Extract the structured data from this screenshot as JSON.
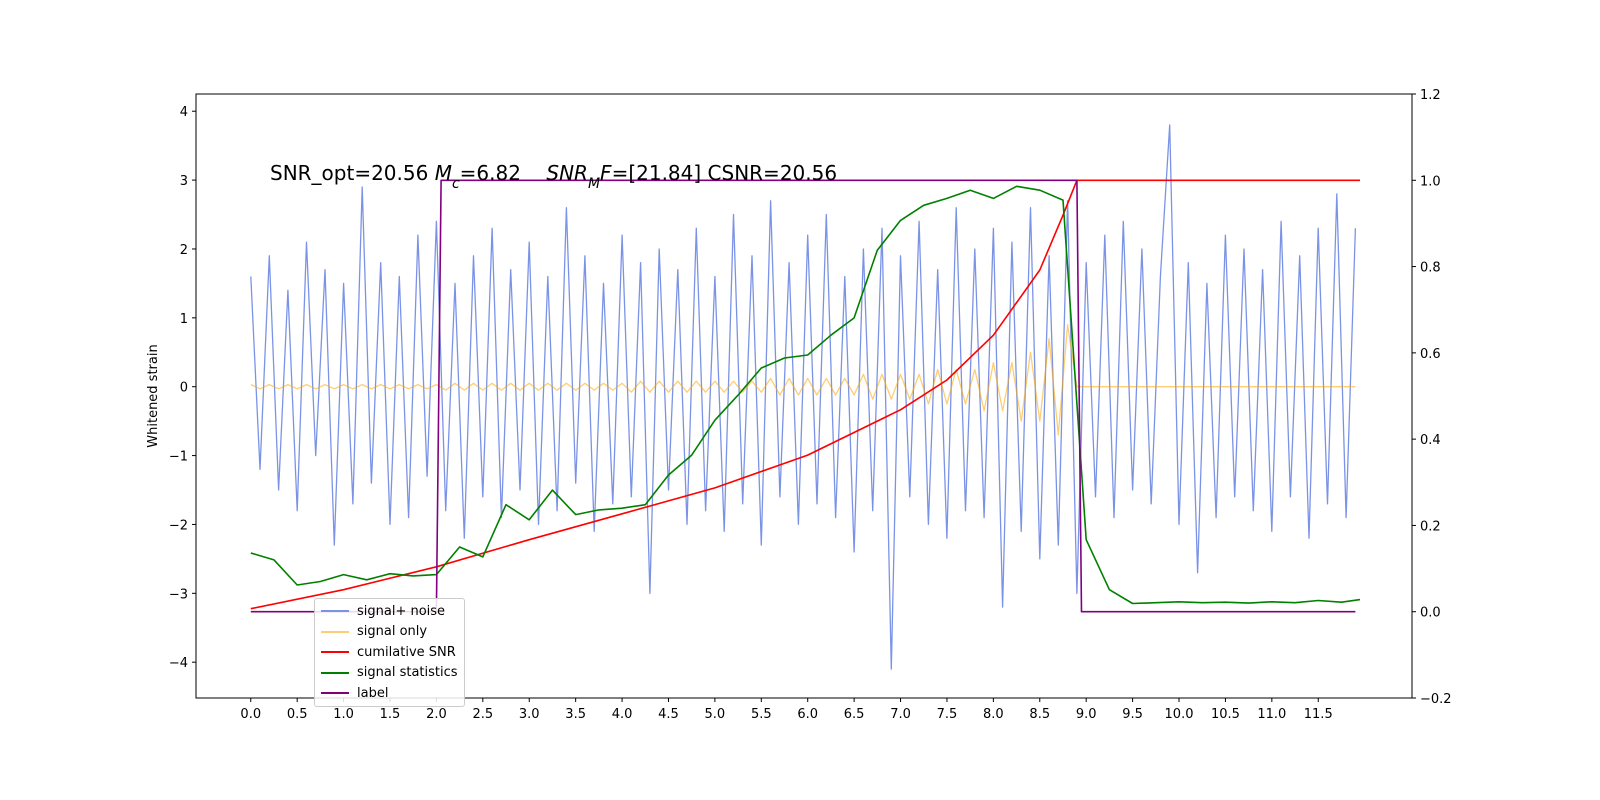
{
  "chart_data": {
    "type": "line",
    "ylabel": "Whitened strain",
    "annotation_parts": [
      "SNR_opt=20.56 ",
      "M",
      "c",
      "=6.82    ",
      "SNR",
      "M",
      "F",
      "=[21.84] CSNR=20.56"
    ],
    "xlim": [
      -0.59,
      12.51
    ],
    "ylim": [
      -4.52,
      4.25
    ],
    "y2lim": [
      -0.2,
      1.2
    ],
    "xticks": [
      {
        "value": 0,
        "label": "0.0"
      },
      0.5,
      {
        "value": 1,
        "label": "1.0"
      },
      1.5,
      {
        "value": 2,
        "label": "2.0"
      },
      2.5,
      {
        "value": 3,
        "label": "3.0"
      },
      3.5,
      {
        "value": 4,
        "label": "4.0"
      },
      4.5,
      {
        "value": 5,
        "label": "5.0"
      },
      5.5,
      {
        "value": 6,
        "label": "6.0"
      },
      6.5,
      {
        "value": 7,
        "label": "7.0"
      },
      7.5,
      {
        "value": 8,
        "label": "8.0"
      },
      8.5,
      {
        "value": 9,
        "label": "9.0"
      },
      9.5,
      {
        "value": 10,
        "label": "10.0"
      },
      10.5,
      {
        "value": 11,
        "label": "11.0"
      },
      11.5
    ],
    "yticks": [
      {
        "value": -4,
        "label": "−4"
      },
      {
        "value": -3,
        "label": "−3"
      },
      {
        "value": -2,
        "label": "−2"
      },
      {
        "value": -1,
        "label": "−1"
      },
      0,
      1,
      2,
      3,
      4
    ],
    "y2ticks": [
      {
        "value": -0.2,
        "label": "−0.2"
      },
      {
        "value": 0,
        "label": "0.0"
      },
      0.2,
      0.4,
      0.6,
      0.8,
      {
        "value": 1,
        "label": "1.0"
      },
      1.2
    ],
    "legend": "lower left",
    "x": [
      0,
      0.1,
      0.2,
      0.3,
      0.4,
      0.5,
      0.6,
      0.7,
      0.8,
      0.9,
      1,
      1.1,
      1.2,
      1.3,
      1.4,
      1.5,
      1.6,
      1.7,
      1.8,
      1.9,
      2,
      2.1,
      2.2,
      2.3,
      2.4,
      2.5,
      2.6,
      2.7,
      2.8,
      2.9,
      3,
      3.1,
      3.2,
      3.3,
      3.4,
      3.5,
      3.6,
      3.7,
      3.8,
      3.9,
      4,
      4.1,
      4.2,
      4.3,
      4.4,
      4.5,
      4.6,
      4.7,
      4.8,
      4.9,
      5,
      5.1,
      5.2,
      5.3,
      5.4,
      5.5,
      5.6,
      5.7,
      5.8,
      5.9,
      6,
      6.1,
      6.2,
      6.3,
      6.4,
      6.5,
      6.6,
      6.7,
      6.8,
      6.9,
      7,
      7.1,
      7.2,
      7.3,
      7.4,
      7.5,
      7.6,
      7.7,
      7.8,
      7.9,
      8,
      8.1,
      8.2,
      8.3,
      8.4,
      8.5,
      8.6,
      8.7,
      8.8,
      8.9,
      9,
      9.1,
      9.2,
      9.3,
      9.4,
      9.5,
      9.6,
      9.7,
      9.8,
      9.9,
      10,
      10.1,
      10.2,
      10.3,
      10.4,
      10.5,
      10.6,
      10.7,
      10.8,
      10.9,
      11,
      11.1,
      11.2,
      11.3,
      11.4,
      11.5,
      11.6,
      11.7,
      11.8,
      11.9
    ],
    "series": [
      {
        "name": "signal+ noise",
        "color": "#7b93e6",
        "values": [
          1.6,
          -1.2,
          1.9,
          -1.5,
          1.4,
          -1.8,
          2.1,
          -1.0,
          1.7,
          -2.3,
          1.5,
          -1.7,
          2.9,
          -1.4,
          1.8,
          -2.0,
          1.6,
          -1.9,
          2.2,
          -1.3,
          2.4,
          -1.8,
          1.5,
          -2.2,
          1.9,
          -1.6,
          2.3,
          -1.9,
          1.7,
          -1.5,
          2.1,
          -2.0,
          1.6,
          -1.8,
          2.6,
          -1.4,
          1.9,
          -2.1,
          1.5,
          -1.7,
          2.2,
          -1.6,
          1.8,
          -3.0,
          2.0,
          -1.5,
          1.7,
          -2.0,
          2.3,
          -1.8,
          1.6,
          -2.1,
          2.5,
          -1.7,
          1.9,
          -2.3,
          2.7,
          -1.6,
          1.8,
          -2.0,
          2.2,
          -1.7,
          2.5,
          -1.9,
          1.6,
          -2.4,
          2.0,
          -1.8,
          2.3,
          -4.1,
          1.9,
          -1.6,
          2.4,
          -2.0,
          1.7,
          -2.2,
          2.6,
          -1.8,
          2.0,
          -1.9,
          2.3,
          -3.2,
          2.1,
          -2.1,
          2.6,
          -2.5,
          1.9,
          -2.3,
          2.7,
          -3.0,
          1.8,
          -1.6,
          2.2,
          -1.9,
          2.4,
          -1.5,
          2.0,
          -1.7,
          1.6,
          3.8,
          -2.0,
          1.8,
          -2.7,
          1.5,
          -1.9,
          2.2,
          -1.6,
          2.0,
          -1.8,
          1.7,
          -2.1,
          2.4,
          -1.6,
          1.9,
          -2.2,
          2.3,
          -1.7,
          2.8,
          -1.9,
          2.3
        ]
      },
      {
        "name": "signal only",
        "color": "#ffa500",
        "values": [
          0.03,
          -0.03,
          0.03,
          -0.03,
          0.03,
          -0.03,
          0.03,
          -0.03,
          0.03,
          -0.03,
          0.03,
          -0.03,
          0.03,
          -0.03,
          0.03,
          -0.03,
          0.03,
          -0.03,
          0.03,
          -0.03,
          0.03,
          -0.05,
          0.05,
          -0.05,
          0.05,
          -0.05,
          0.05,
          -0.05,
          0.05,
          -0.05,
          0.05,
          -0.05,
          0.05,
          -0.05,
          0.05,
          -0.05,
          0.05,
          -0.05,
          0.05,
          -0.05,
          0.05,
          -0.08,
          0.08,
          -0.08,
          0.08,
          -0.08,
          0.08,
          -0.08,
          0.08,
          -0.08,
          0.08,
          -0.08,
          0.08,
          -0.08,
          0.08,
          -0.08,
          0.12,
          -0.12,
          0.12,
          -0.12,
          0.12,
          -0.12,
          0.12,
          -0.12,
          0.12,
          -0.12,
          0.18,
          -0.18,
          0.18,
          -0.18,
          0.18,
          -0.18,
          0.18,
          -0.25,
          0.25,
          -0.25,
          0.25,
          -0.25,
          0.25,
          -0.35,
          0.35,
          -0.35,
          0.35,
          -0.5,
          0.5,
          -0.5,
          0.7,
          -0.7,
          0.9,
          0,
          0,
          0,
          0,
          0,
          0,
          0,
          0,
          0,
          0,
          0,
          0,
          0,
          0,
          0,
          0,
          0,
          0,
          0,
          0,
          0,
          0,
          0,
          0,
          0,
          0,
          0,
          0,
          0,
          0,
          0
        ]
      },
      {
        "name": "cumilative SNR",
        "color": "#ff0000",
        "axis": "y2",
        "x": [
          0,
          1,
          2,
          3,
          4,
          5,
          6,
          7,
          7.5,
          8,
          8.5,
          8.75,
          8.9,
          11.95
        ],
        "values": [
          0.007,
          0.051,
          0.104,
          0.167,
          0.227,
          0.287,
          0.363,
          0.468,
          0.537,
          0.641,
          0.792,
          0.919,
          1.0,
          1.0
        ]
      },
      {
        "name": "signal statistics",
        "color": "#008000",
        "axis": "y2",
        "x": [
          0,
          0.25,
          0.5,
          0.75,
          1,
          1.25,
          1.5,
          1.75,
          2,
          2.25,
          2.5,
          2.75,
          3,
          3.25,
          3.5,
          3.75,
          4,
          4.25,
          4.5,
          4.75,
          5,
          5.25,
          5.5,
          5.75,
          6,
          6.25,
          6.5,
          6.75,
          7,
          7.25,
          7.5,
          7.75,
          8,
          8.25,
          8.5,
          8.75,
          9,
          9.25,
          9.5,
          9.75,
          10,
          10.25,
          10.5,
          10.75,
          11,
          11.25,
          11.5,
          11.75,
          11.95
        ],
        "values": [
          0.136,
          0.12,
          0.062,
          0.07,
          0.086,
          0.074,
          0.088,
          0.083,
          0.086,
          0.15,
          0.127,
          0.248,
          0.213,
          0.282,
          0.225,
          0.236,
          0.24,
          0.248,
          0.317,
          0.363,
          0.444,
          0.502,
          0.565,
          0.588,
          0.595,
          0.641,
          0.681,
          0.838,
          0.907,
          0.942,
          0.958,
          0.977,
          0.958,
          0.986,
          0.977,
          0.954,
          0.167,
          0.051,
          0.019,
          0.021,
          0.023,
          0.021,
          0.022,
          0.02,
          0.023,
          0.021,
          0.026,
          0.022,
          0.028
        ]
      },
      {
        "name": "label",
        "color": "#800080",
        "axis": "y2",
        "x": [
          0,
          2.0,
          2.05,
          8.9,
          8.95,
          11.9
        ],
        "values": [
          0,
          0,
          1,
          1,
          0,
          0
        ]
      }
    ]
  }
}
